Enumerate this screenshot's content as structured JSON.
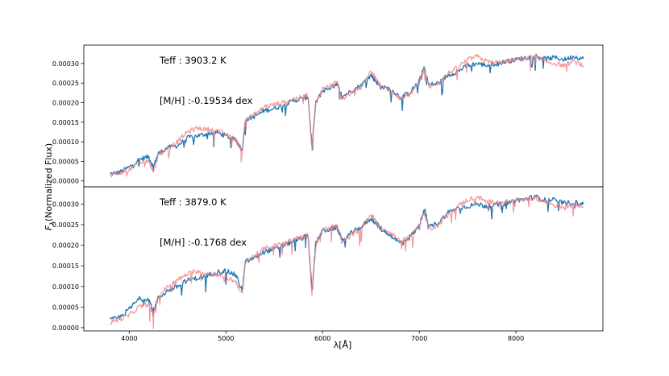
{
  "chart_data": {
    "type": "line",
    "xlabel": "λ[Å]",
    "ylabel": "F_λ(Normalized Flux)",
    "ylabel_sub": "λ",
    "ylabel_rest": "(Normalized Flux)",
    "xlim": [
      3530,
      8900
    ],
    "xticks": [
      4000,
      5000,
      6000,
      7000,
      8000
    ],
    "colors": {
      "observed": "#1f77b4",
      "model": "#f08080",
      "overlap": "#7b2a5a"
    },
    "panels": [
      {
        "ylim": [
          -1.5e-05,
          0.000347
        ],
        "yticks": [
          "0.00000",
          "0.00005",
          "0.00010",
          "0.00015",
          "0.00020",
          "0.00025",
          "0.00030"
        ],
        "annotations": [
          "Teff : 3903.2 K",
          "[M/H] :-0.19534 dex"
        ],
        "series": [
          {
            "role": "observed",
            "x": [
              3800,
              3900,
              4000,
              4100,
              4200,
              4250,
              4300,
              4400,
              4500,
              4600,
              4700,
              4800,
              4900,
              5000,
              5100,
              5170,
              5200,
              5300,
              5400,
              5500,
              5600,
              5700,
              5800,
              5850,
              5890,
              5930,
              6000,
              6100,
              6150,
              6200,
              6300,
              6400,
              6500,
              6550,
              6600,
              6700,
              6800,
              6900,
              7000,
              7050,
              7100,
              7200,
              7300,
              7400,
              7500,
              7600,
              7700,
              7800,
              7900,
              8000,
              8100,
              8200,
              8300,
              8400,
              8500,
              8600,
              8700
            ],
            "y": [
              1.8e-05,
              2.2e-05,
              3.5e-05,
              5.5e-05,
              6.2e-05,
              3.5e-05,
              7e-05,
              8.5e-05,
              9e-05,
              0.00011,
              0.000115,
              0.00012,
              0.000125,
              0.000115,
              0.000105,
              8e-05,
              0.000155,
              0.000165,
              0.00018,
              0.000185,
              0.000195,
              0.000205,
              0.00021,
              0.000215,
              9e-05,
              0.0002,
              0.00023,
              0.00024,
              0.00025,
              0.000215,
              0.00023,
              0.000245,
              0.00027,
              0.000255,
              0.00024,
              0.000235,
              0.000215,
              0.000225,
              0.000255,
              0.00029,
              0.000245,
              0.00025,
              0.00027,
              0.00028,
              0.000295,
              0.0003,
              0.000295,
              0.0003,
              0.000305,
              0.00031,
              0.000315,
              0.00032,
              0.000312,
              0.000315,
              0.00031,
              0.000318,
              0.000312
            ]
          },
          {
            "role": "model",
            "x": [
              3800,
              3900,
              4000,
              4100,
              4200,
              4250,
              4300,
              4400,
              4500,
              4600,
              4700,
              4800,
              4900,
              5000,
              5100,
              5170,
              5200,
              5300,
              5400,
              5500,
              5600,
              5700,
              5800,
              5850,
              5890,
              5930,
              6000,
              6100,
              6150,
              6200,
              6300,
              6400,
              6500,
              6550,
              6600,
              6700,
              6800,
              6900,
              7000,
              7050,
              7100,
              7200,
              7300,
              7400,
              7500,
              7600,
              7700,
              7800,
              7900,
              8000,
              8100,
              8200,
              8300,
              8400,
              8500,
              8600,
              8700
            ],
            "y": [
              1.5e-05,
              2e-05,
              2.8e-05,
              4.5e-05,
              5.2e-05,
              2.5e-05,
              6.5e-05,
              8.5e-05,
              0.0001,
              0.000125,
              0.000135,
              0.000132,
              0.00013,
              0.000118,
              0.000105,
              7.5e-05,
              0.000158,
              0.00017,
              0.00019,
              0.000195,
              0.0002,
              0.00021,
              0.000215,
              0.00022,
              8e-05,
              0.0002,
              0.000235,
              0.000245,
              0.000252,
              0.00021,
              0.000225,
              0.00024,
              0.00028,
              0.000262,
              0.000242,
              0.000232,
              0.000212,
              0.00022,
              0.00025,
              0.000285,
              0.00024,
              0.00025,
              0.000275,
              0.00029,
              0.00031,
              0.000318,
              0.000305,
              0.000302,
              0.000305,
              0.00031,
              0.000312,
              0.000318,
              0.000305,
              0.0003,
              0.000295,
              0.000305,
              0.000295
            ]
          }
        ]
      },
      {
        "ylim": [
          -8e-06,
          0.000342
        ],
        "yticks": [
          "0.00000",
          "0.00005",
          "0.00010",
          "0.00015",
          "0.00020",
          "0.00025",
          "0.00030"
        ],
        "annotations": [
          "Teff : 3879.0 K",
          "[M/H] :-0.1768 dex"
        ],
        "series": [
          {
            "role": "observed",
            "x": [
              3800,
              3900,
              4000,
              4100,
              4200,
              4250,
              4300,
              4400,
              4500,
              4600,
              4700,
              4800,
              4900,
              5000,
              5100,
              5170,
              5200,
              5300,
              5400,
              5500,
              5600,
              5700,
              5800,
              5850,
              5890,
              5930,
              6000,
              6100,
              6150,
              6200,
              6300,
              6400,
              6500,
              6550,
              6600,
              6700,
              6800,
              6900,
              7000,
              7050,
              7100,
              7200,
              7300,
              7400,
              7500,
              7600,
              7700,
              7800,
              7900,
              8000,
              8100,
              8200,
              8300,
              8400,
              8500,
              8600,
              8700
            ],
            "y": [
              1.8e-05,
              2.5e-05,
              4.5e-05,
              7e-05,
              7e-05,
              4e-05,
              7.2e-05,
              9e-05,
              0.0001,
              0.000115,
              0.00012,
              0.000125,
              0.000135,
              0.000138,
              0.000128,
              9e-05,
              0.00016,
              0.00017,
              0.000185,
              0.00019,
              0.0002,
              0.00021,
              0.000218,
              0.000225,
              9e-05,
              0.000205,
              0.000235,
              0.00024,
              0.000245,
              0.00021,
              0.00023,
              0.000245,
              0.000265,
              0.000255,
              0.00024,
              0.000225,
              0.000205,
              0.00022,
              0.000245,
              0.00029,
              0.000245,
              0.000255,
              0.00028,
              0.00029,
              0.000295,
              0.0003,
              0.000295,
              0.000298,
              0.000302,
              0.00031,
              0.000312,
              0.000318,
              0.00031,
              0.00031,
              0.000302,
              0.000305,
              0.0003
            ]
          },
          {
            "role": "model",
            "x": [
              3800,
              3900,
              4000,
              4100,
              4200,
              4250,
              4300,
              4400,
              4500,
              4600,
              4700,
              4800,
              4900,
              5000,
              5100,
              5170,
              5200,
              5300,
              5400,
              5500,
              5600,
              5700,
              5800,
              5850,
              5890,
              5930,
              6000,
              6100,
              6150,
              6200,
              6300,
              6400,
              6500,
              6550,
              6600,
              6700,
              6800,
              6900,
              7000,
              7050,
              7100,
              7200,
              7300,
              7400,
              7500,
              7600,
              7700,
              7800,
              7900,
              8000,
              8100,
              8200,
              8300,
              8400,
              8500,
              8600,
              8700
            ],
            "y": [
              1.2e-05,
              2e-05,
              3e-05,
              5e-05,
              5.8e-05,
              3e-05,
              7.5e-05,
              0.0001,
              0.000115,
              0.00013,
              0.000138,
              0.000132,
              0.00013,
              0.000122,
              0.000112,
              8e-05,
              0.000162,
              0.000175,
              0.000192,
              0.000198,
              0.000205,
              0.000215,
              0.00022,
              0.000225,
              8e-05,
              0.0002,
              0.000238,
              0.000245,
              0.00025,
              0.000205,
              0.000225,
              0.00024,
              0.000275,
              0.00026,
              0.000242,
              0.00023,
              0.00021,
              0.000218,
              0.00025,
              0.00028,
              0.00024,
              0.00025,
              0.000278,
              0.000295,
              0.00031,
              0.000318,
              0.000305,
              0.000305,
              0.000305,
              0.000308,
              0.00031,
              0.000315,
              0.000305,
              0.000298,
              0.000292,
              0.0003,
              0.000292
            ]
          }
        ]
      }
    ]
  }
}
